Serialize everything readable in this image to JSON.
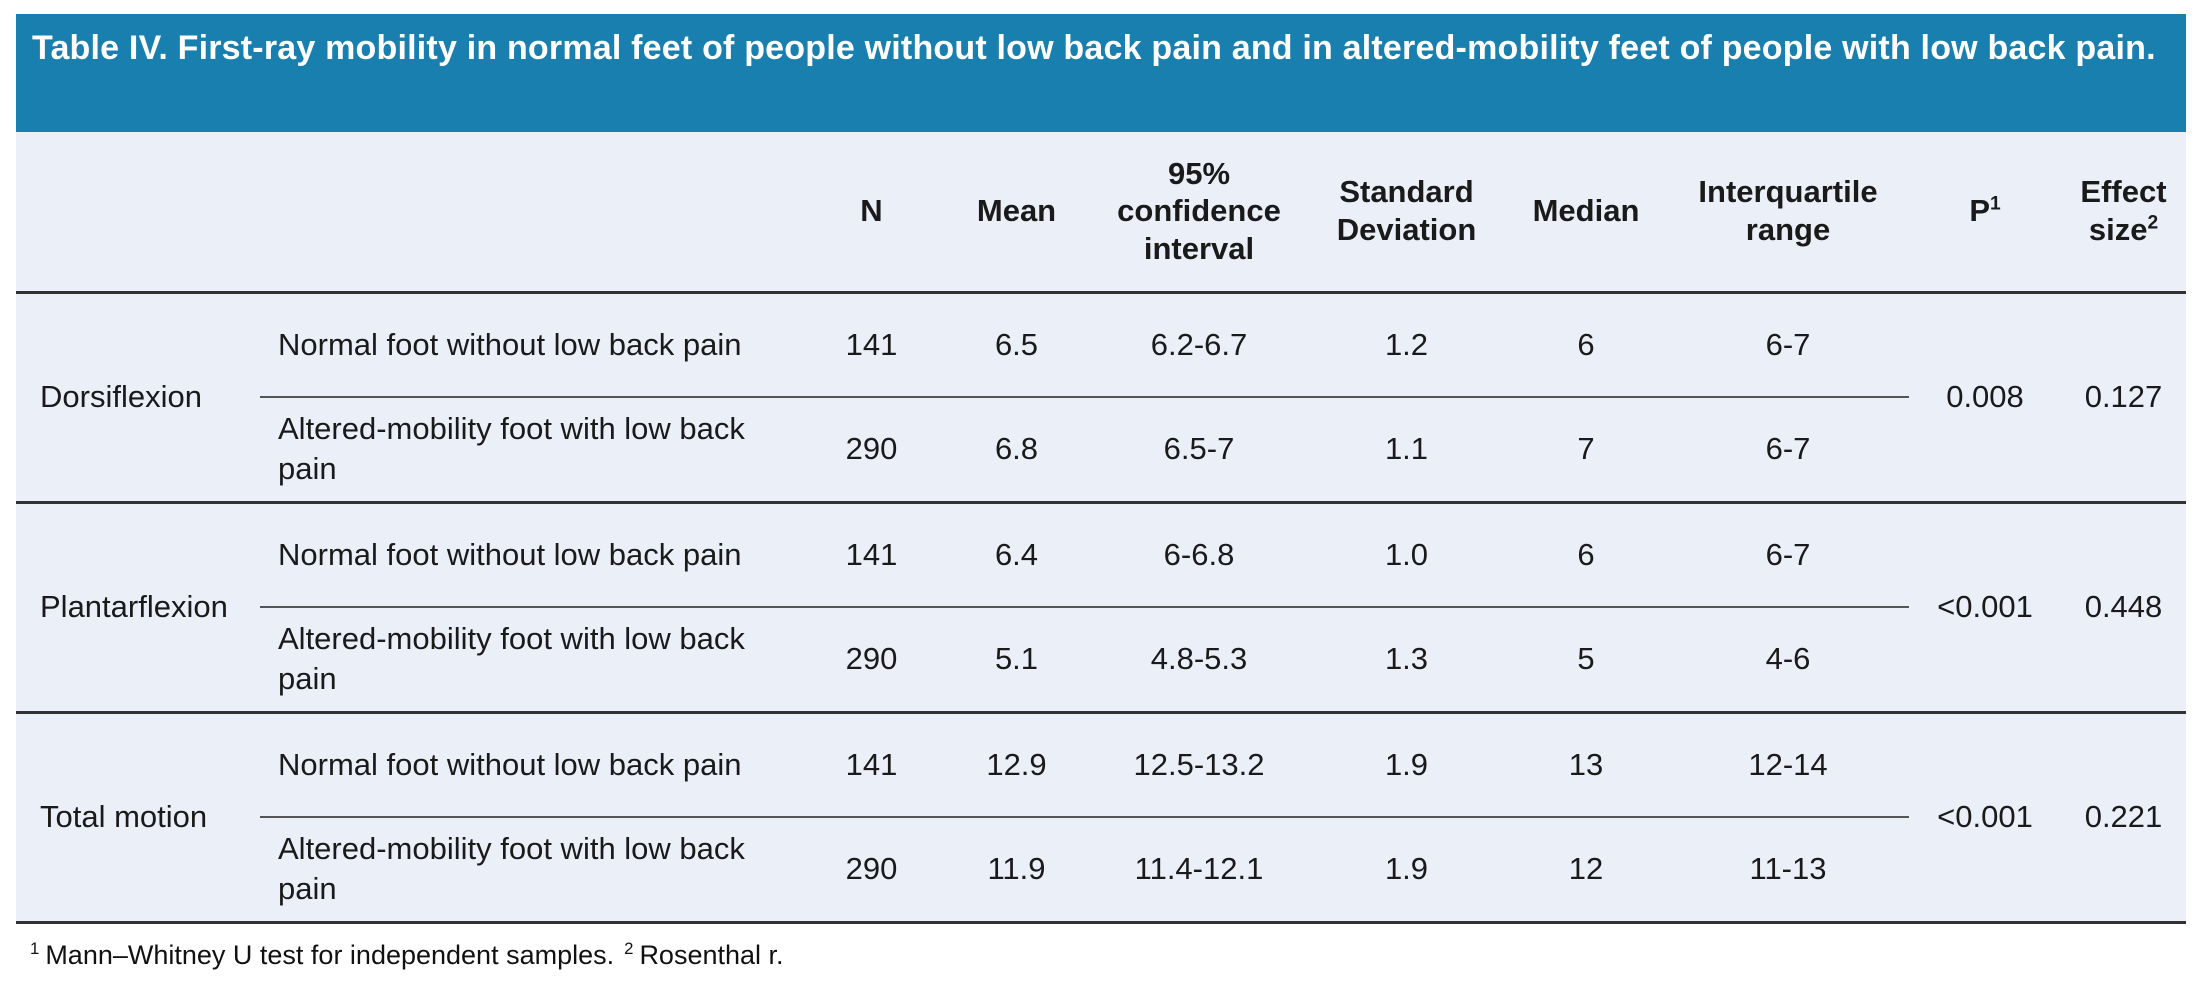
{
  "title": "Table IV. First-ray mobility in normal feet of people without low back pain and in altered-mobility feet of people with low back pain.",
  "columns": {
    "n": "N",
    "mean": "Mean",
    "ci": "95% confidence interval",
    "sd": "Standard Deviation",
    "median": "Median",
    "iqr": "Interquartile range",
    "p_label": "P",
    "p_sup": "1",
    "effect_label": "Effect size",
    "effect_sup": "2"
  },
  "sections": [
    {
      "label": "Dorsiflexion",
      "p": "0.008",
      "effect_size": "0.127",
      "rows": [
        {
          "group": "Normal foot without low back pain",
          "n": "141",
          "mean": "6.5",
          "ci": "6.2-6.7",
          "sd": "1.2",
          "median": "6",
          "iqr": "6-7"
        },
        {
          "group": "Altered-mobility foot with low back pain",
          "n": "290",
          "mean": "6.8",
          "ci": "6.5-7",
          "sd": "1.1",
          "median": "7",
          "iqr": "6-7"
        }
      ]
    },
    {
      "label": "Plantarflexion",
      "p": "<0.001",
      "effect_size": "0.448",
      "rows": [
        {
          "group": "Normal foot without low back pain",
          "n": "141",
          "mean": "6.4",
          "ci": "6-6.8",
          "sd": "1.0",
          "median": "6",
          "iqr": "6-7"
        },
        {
          "group": "Altered-mobility foot with low back pain",
          "n": "290",
          "mean": "5.1",
          "ci": "4.8-5.3",
          "sd": "1.3",
          "median": "5",
          "iqr": "4-6"
        }
      ]
    },
    {
      "label": "Total motion",
      "p": "<0.001",
      "effect_size": "0.221",
      "rows": [
        {
          "group": "Normal foot without low back pain",
          "n": "141",
          "mean": "12.9",
          "ci": "12.5-13.2",
          "sd": "1.9",
          "median": "13",
          "iqr": "12-14"
        },
        {
          "group": "Altered-mobility foot with low back pain",
          "n": "290",
          "mean": "11.9",
          "ci": "11.4-12.1",
          "sd": "1.9",
          "median": "12",
          "iqr": "11-13"
        }
      ]
    }
  ],
  "footnotes": [
    {
      "sup": "1",
      "text": "Mann–Whitney U test for independent samples."
    },
    {
      "sup": "2",
      "text": "Rosenthal r."
    }
  ],
  "colors": {
    "header_bg": "#187fae",
    "body_bg": "#ebeff8",
    "title_text": "#ffffff",
    "body_text": "#1a1a1a",
    "border_dark": "#323232",
    "border_thin": "#555555"
  }
}
